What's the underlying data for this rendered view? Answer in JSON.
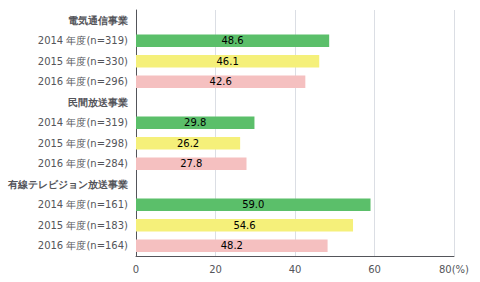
{
  "chart_data": {
    "type": "bar",
    "orientation": "horizontal",
    "categories": [
      "電気通信事業",
      "2014 年度(n=319)",
      "2015 年度(n=330)",
      "2016 年度(n=296)",
      "民間放送事業",
      "2014 年度(n=319)",
      "2015 年度(n=298)",
      "2016 年度(n=284)",
      "有線テレビジョン放送事業",
      "2014 年度(n=161)",
      "2015 年度(n=183)",
      "2016 年度(n=164)"
    ],
    "values": [
      null,
      48.6,
      46.1,
      42.6,
      null,
      29.8,
      26.2,
      27.8,
      null,
      59.0,
      54.6,
      48.2
    ],
    "value_labels": [
      null,
      "48.6",
      "46.1",
      "42.6",
      null,
      "29.8",
      "26.2",
      "27.8",
      null,
      "59.0",
      "54.6",
      "48.2"
    ],
    "colors": [
      null,
      "#5BBF6A",
      "#F5F07A",
      "#F5C0C0",
      null,
      "#5BBF6A",
      "#F5F07A",
      "#F5C0C0",
      null,
      "#5BBF6A",
      "#F5F07A",
      "#F5C0C0"
    ],
    "xlim": [
      0,
      80
    ],
    "xticks": [
      0,
      20,
      40,
      60,
      {
        "value": 80,
        "label": "80(%)"
      }
    ],
    "grid": true,
    "data_labels": true
  }
}
